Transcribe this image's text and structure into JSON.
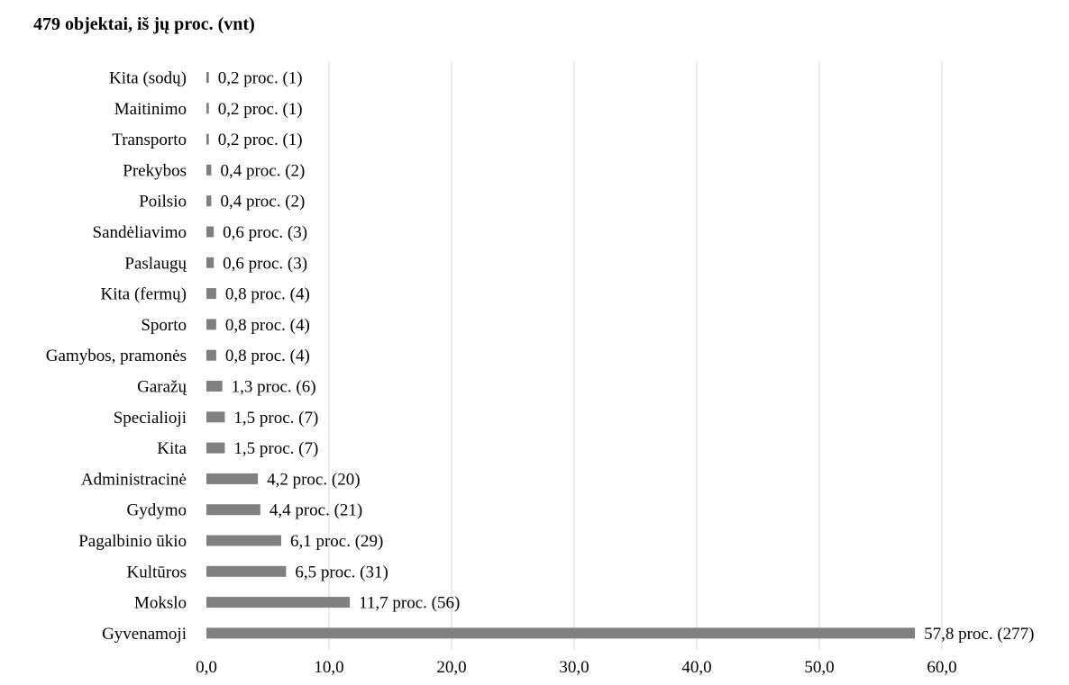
{
  "chart_data": {
    "type": "bar",
    "orientation": "horizontal",
    "title": "479 objektai, iš jų proc. (vnt)",
    "categories": [
      "Kita (sodų)",
      "Maitinimo",
      "Transporto",
      "Prekybos",
      "Poilsio",
      "Sandėliavimo",
      "Paslaugų",
      "Kita (fermų)",
      "Sporto",
      "Gamybos, pramonės",
      "Garažų",
      "Specialioji",
      "Kita",
      "Administracinė",
      "Gydymo",
      "Pagalbinio ūkio",
      "Kultūros",
      "Mokslo",
      "Gyvenamoji"
    ],
    "values": [
      0.2,
      0.2,
      0.2,
      0.4,
      0.4,
      0.6,
      0.6,
      0.8,
      0.8,
      0.8,
      1.3,
      1.5,
      1.5,
      4.2,
      4.4,
      6.1,
      6.5,
      11.7,
      57.8
    ],
    "data_labels": [
      "0,2 proc. (1)",
      "0,2 proc. (1)",
      "0,2 proc. (1)",
      "0,4 proc. (2)",
      "0,4 proc. (2)",
      "0,6 proc. (3)",
      "0,6 proc. (3)",
      "0,8 proc. (4)",
      "0,8 proc. (4)",
      "0,8 proc. (4)",
      "1,3 proc. (6)",
      "1,5 proc. (7)",
      "1,5 proc. (7)",
      "4,2 proc. (20)",
      "4,4 proc. (21)",
      "6,1 proc. (29)",
      "6,5 proc. (31)",
      "11,7 proc. (56)",
      "57,8 proc. (277)"
    ],
    "xticks": [
      "0,0",
      "10,0",
      "20,0",
      "30,0",
      "40,0",
      "50,0",
      "60,0"
    ],
    "xlim": [
      0,
      70
    ],
    "grid": true,
    "bar_color": "#808080",
    "grid_color": "#d9d9d9"
  }
}
